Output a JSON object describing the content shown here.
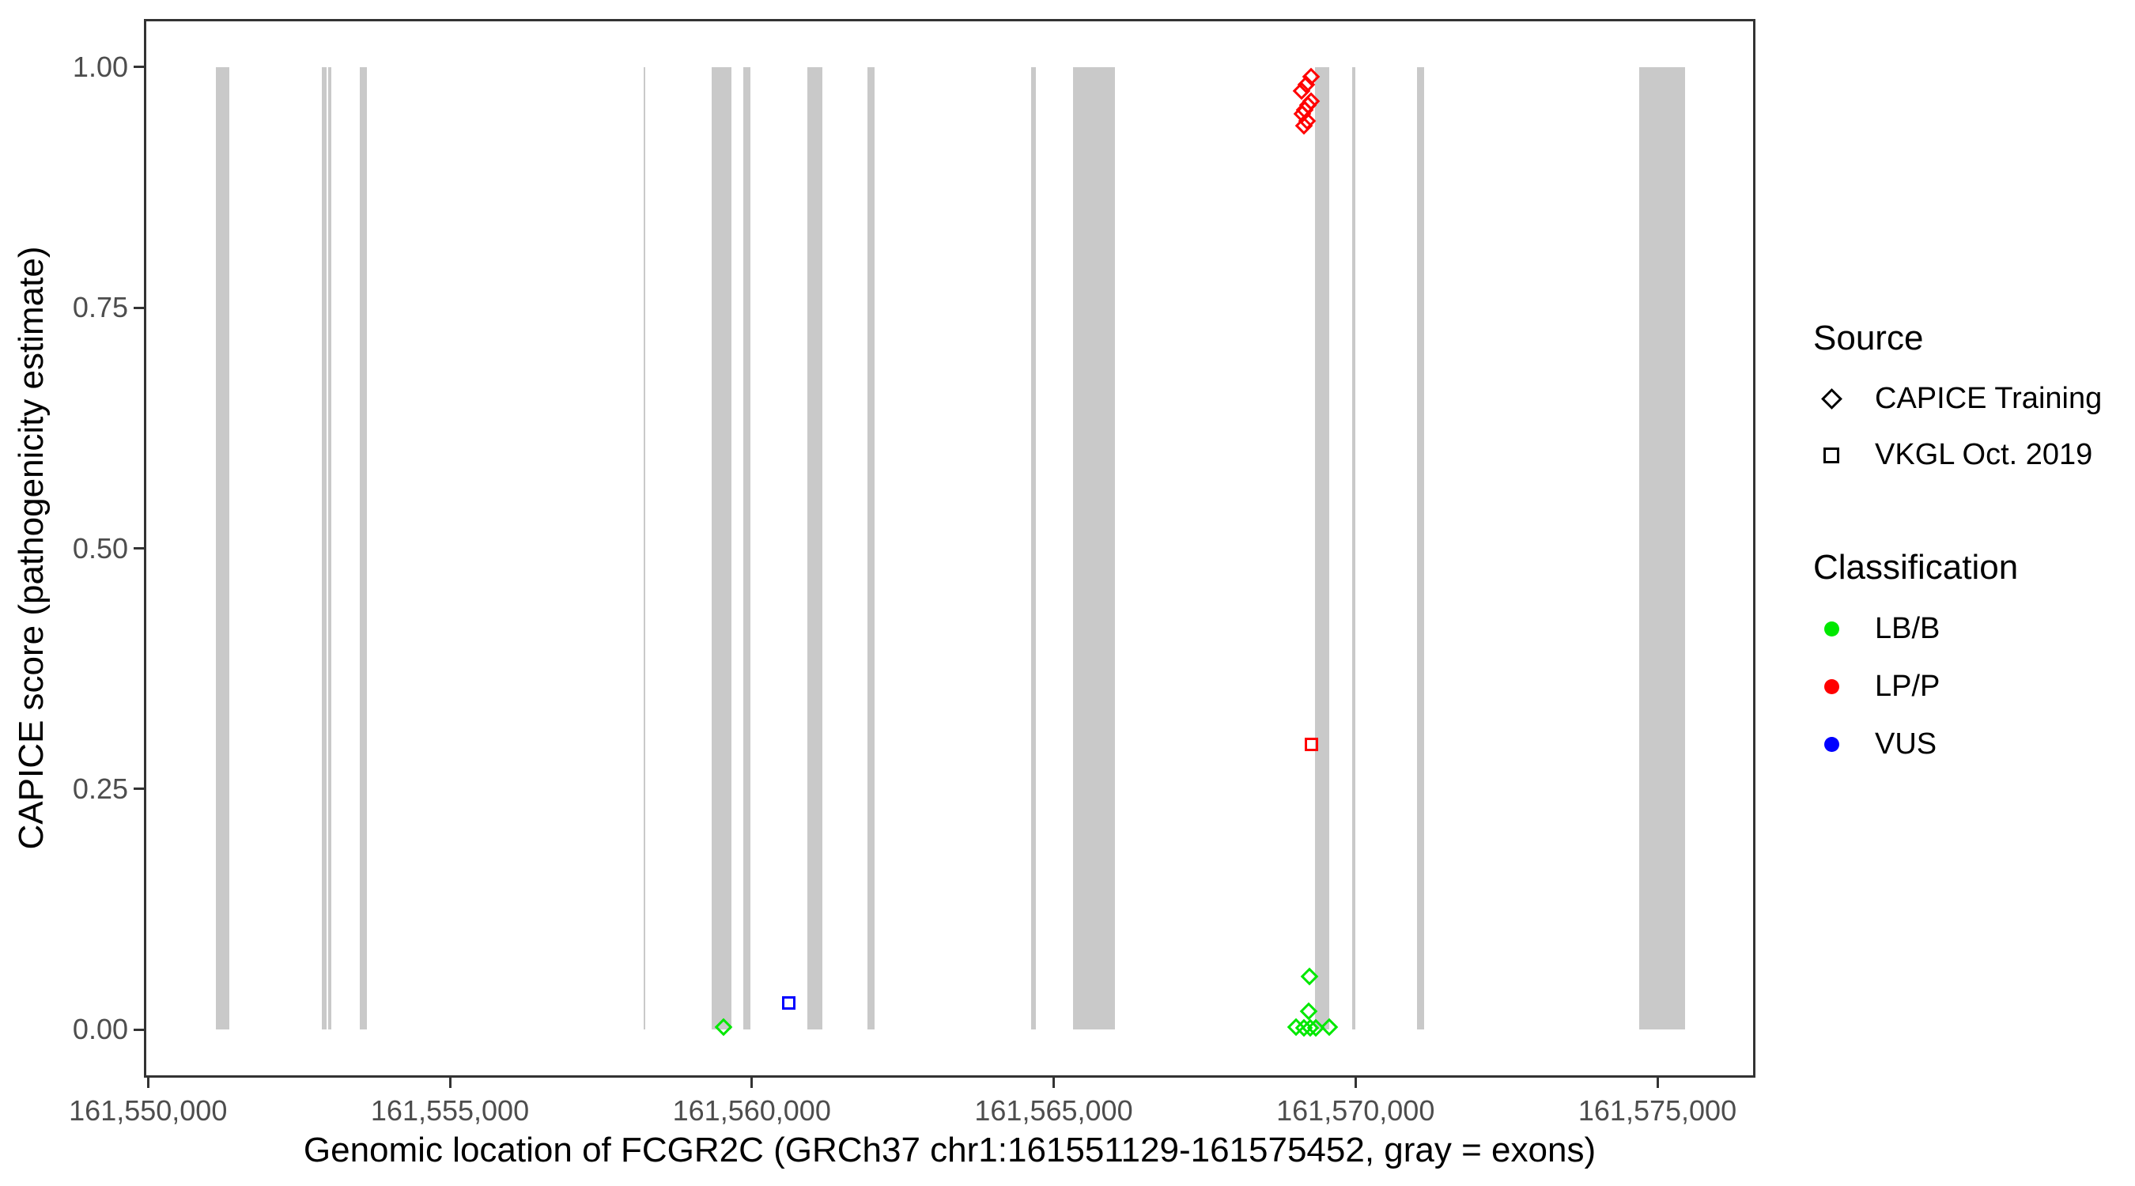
{
  "chart_data": {
    "type": "scatter",
    "title": "",
    "xlabel": "Genomic location of FCGR2C (GRCh37 chr1:161551129-161575452, gray = exons)",
    "ylabel": "CAPICE score (pathogenicity estimate)",
    "xlim": [
      161549931,
      161576624
    ],
    "ylim": [
      -0.05,
      1.05
    ],
    "grid": "off",
    "x_ticks": [
      {
        "value": 161550000,
        "label": "161,550,000"
      },
      {
        "value": 161555000,
        "label": "161,555,000"
      },
      {
        "value": 161560000,
        "label": "161,560,000"
      },
      {
        "value": 161565000,
        "label": "161,565,000"
      },
      {
        "value": 161570000,
        "label": "161,570,000"
      },
      {
        "value": 161575000,
        "label": "161,575,000"
      }
    ],
    "y_ticks": [
      {
        "value": 0.0,
        "label": "0.00"
      },
      {
        "value": 0.25,
        "label": "0.25"
      },
      {
        "value": 0.5,
        "label": "0.50"
      },
      {
        "value": 0.75,
        "label": "0.75"
      },
      {
        "value": 1.0,
        "label": "1.00"
      }
    ],
    "exon_color": "#C9C9C9",
    "exons": [
      {
        "start": 161551129,
        "end": 161551352
      },
      {
        "start": 161552877,
        "end": 161552956
      },
      {
        "start": 161552983,
        "end": 161553035
      },
      {
        "start": 161553506,
        "end": 161553624
      },
      {
        "start": 161558208,
        "end": 161558241
      },
      {
        "start": 161559341,
        "end": 161559669
      },
      {
        "start": 161559865,
        "end": 161559983
      },
      {
        "start": 161560920,
        "end": 161561168
      },
      {
        "start": 161561915,
        "end": 161562033
      },
      {
        "start": 161564626,
        "end": 161564705
      },
      {
        "start": 161565327,
        "end": 161566021
      },
      {
        "start": 161569328,
        "end": 161569564
      },
      {
        "start": 161569943,
        "end": 161569996
      },
      {
        "start": 161571024,
        "end": 161571135
      },
      {
        "start": 161574698,
        "end": 161575452
      }
    ],
    "series": [
      {
        "name": "CAPICE Training",
        "marker": "diamond",
        "classification": "LP/P",
        "color": "#FF0000",
        "points": [
          {
            "x": 161569265,
            "y": 0.99
          },
          {
            "x": 161569186,
            "y": 0.981
          },
          {
            "x": 161569113,
            "y": 0.975
          },
          {
            "x": 161569265,
            "y": 0.964
          },
          {
            "x": 161569222,
            "y": 0.96
          },
          {
            "x": 161569169,
            "y": 0.955
          },
          {
            "x": 161569126,
            "y": 0.951
          },
          {
            "x": 161569199,
            "y": 0.944
          },
          {
            "x": 161569156,
            "y": 0.939
          }
        ]
      },
      {
        "name": "CAPICE Training",
        "marker": "diamond",
        "classification": "LB/B",
        "color": "#00E800",
        "points": [
          {
            "x": 161559536,
            "y": 0.002
          },
          {
            "x": 161569244,
            "y": 0.055
          },
          {
            "x": 161569231,
            "y": 0.019
          },
          {
            "x": 161569025,
            "y": 0.002
          },
          {
            "x": 161569156,
            "y": 0.001
          },
          {
            "x": 161569261,
            "y": 0.0015
          },
          {
            "x": 161569353,
            "y": 0.001
          },
          {
            "x": 161569572,
            "y": 0.002
          }
        ]
      },
      {
        "name": "VKGL Oct. 2019",
        "marker": "square",
        "classification": "VUS",
        "color": "#0000FF",
        "points": [
          {
            "x": 161560618,
            "y": 0.027
          }
        ]
      },
      {
        "name": "VKGL Oct. 2019",
        "marker": "square",
        "classification": "LP/P",
        "color": "#FF0000",
        "points": [
          {
            "x": 161569274,
            "y": 0.296
          }
        ]
      }
    ]
  },
  "legend": {
    "source": {
      "title": "Source",
      "items": [
        {
          "label": "CAPICE Training",
          "marker": "diamond"
        },
        {
          "label": "VKGL Oct. 2019",
          "marker": "square"
        }
      ]
    },
    "classification": {
      "title": "Classification",
      "items": [
        {
          "label": "LB/B",
          "color": "#00E800"
        },
        {
          "label": "LP/P",
          "color": "#FF0000"
        },
        {
          "label": "VUS",
          "color": "#0000FF"
        }
      ]
    }
  },
  "colors": {
    "exon": "#C9C9C9",
    "panel_border": "#333333",
    "tick_label": "#4D4D4D",
    "axis_title": "#000000",
    "legend_key": "#000000"
  }
}
